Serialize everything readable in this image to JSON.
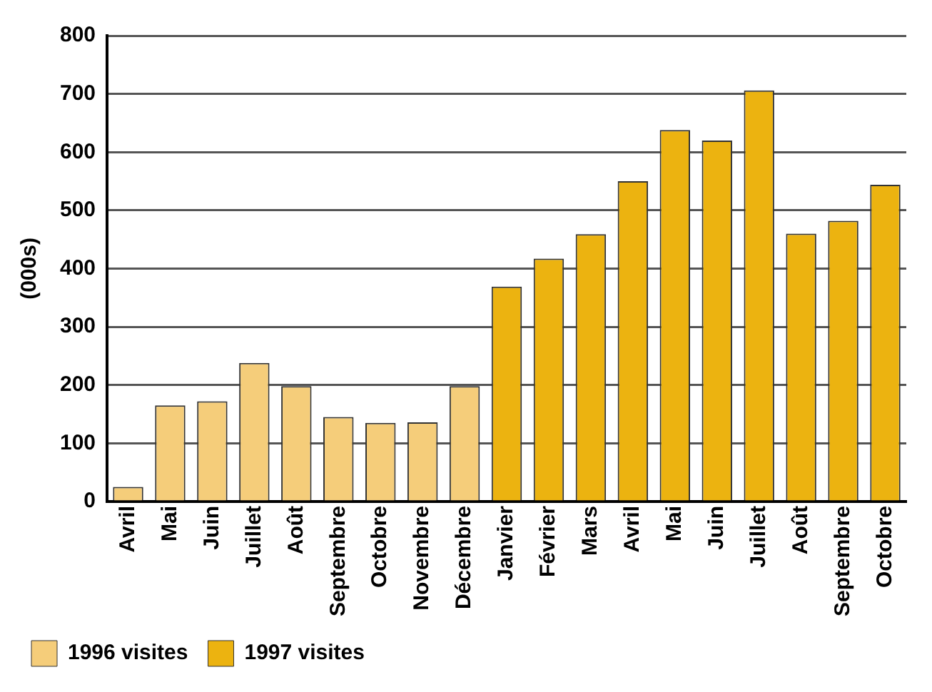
{
  "chart_data": {
    "type": "bar",
    "ylabel": "(000s)",
    "categories": [
      "Avril",
      "Mai",
      "Juin",
      "Juillet",
      "Août",
      "Septembre",
      "Octobre",
      "Novembre",
      "Décembre",
      "Janvier",
      "Février",
      "Mars",
      "Avril",
      "Mai",
      "Juin",
      "Juillet",
      "Août",
      "Septembre",
      "Octobre"
    ],
    "series": [
      {
        "name": "1996 visites",
        "color": "#f5cd7a",
        "values": [
          25,
          165,
          172,
          238,
          198,
          145,
          135,
          136,
          198,
          null,
          null,
          null,
          null,
          null,
          null,
          null,
          null,
          null,
          null
        ]
      },
      {
        "name": "1997 visites",
        "color": "#ecb310",
        "values": [
          null,
          null,
          null,
          null,
          null,
          null,
          null,
          null,
          null,
          369,
          417,
          459,
          550,
          638,
          620,
          706,
          460,
          482,
          544
        ]
      }
    ],
    "ylim": [
      0,
      800
    ],
    "yticks": [
      0,
      100,
      200,
      300,
      400,
      500,
      600,
      700,
      800
    ],
    "grid": "y",
    "legend": "bottom"
  }
}
